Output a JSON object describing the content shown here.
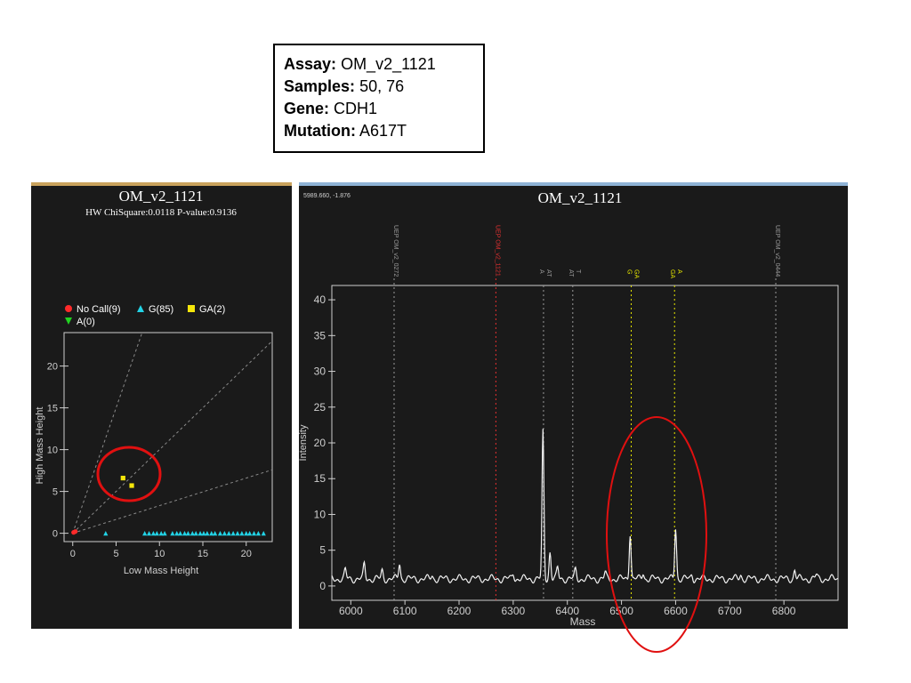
{
  "info": {
    "assay_label": "Assay:",
    "assay_value": "OM_v2_1121",
    "samples_label": "Samples:",
    "samples_value": "50, 76",
    "gene_label": "Gene:",
    "gene_value": "CDH1",
    "mutation_label": "Mutation:",
    "mutation_value": "A617T"
  },
  "colors": {
    "panel_bg": "#1a1a1a",
    "axis": "#cfcfcf",
    "no_call": "#ff2a2a",
    "g": "#22d3e6",
    "ga": "#f5e60a",
    "a": "#21d321",
    "trace": "#f2f2f2",
    "annotation": "#e01010",
    "uep_red": "#e03030"
  },
  "chart_data": [
    {
      "type": "scatter",
      "title": "OM_v2_1121",
      "subtitle": "HW ChiSquare:0.0118   P-value:0.9136",
      "xlabel": "Low Mass Height",
      "ylabel": "High Mass Height",
      "xlim": [
        -1,
        23
      ],
      "ylim": [
        -1,
        24
      ],
      "xticks": [
        0,
        5,
        10,
        15,
        20
      ],
      "yticks": [
        0,
        5,
        10,
        15,
        20
      ],
      "legend_position": "top",
      "guide_slopes": [
        3.0,
        1.0,
        0.33
      ],
      "series": [
        {
          "name": "No Call(9)",
          "marker": "circle",
          "color": "#ff2a2a",
          "points": [
            [
              0.1,
              0.1
            ],
            [
              0.3,
              0.2
            ]
          ]
        },
        {
          "name": "G(85)",
          "marker": "triangle",
          "color": "#22d3e6",
          "points": [
            [
              3.8,
              0
            ],
            [
              8.3,
              0
            ],
            [
              8.8,
              0
            ],
            [
              9.3,
              0
            ],
            [
              9.7,
              0
            ],
            [
              10.2,
              0
            ],
            [
              10.6,
              0
            ],
            [
              11.5,
              0
            ],
            [
              12.0,
              0
            ],
            [
              12.4,
              0
            ],
            [
              12.9,
              0
            ],
            [
              13.3,
              0
            ],
            [
              13.8,
              0
            ],
            [
              14.2,
              0
            ],
            [
              14.7,
              0
            ],
            [
              15.1,
              0
            ],
            [
              15.5,
              0
            ],
            [
              16.0,
              0
            ],
            [
              16.4,
              0
            ],
            [
              17.0,
              0
            ],
            [
              17.5,
              0
            ],
            [
              18.0,
              0
            ],
            [
              18.5,
              0
            ],
            [
              19.0,
              0
            ],
            [
              19.5,
              0
            ],
            [
              20.0,
              0
            ],
            [
              20.4,
              0
            ],
            [
              20.9,
              0
            ],
            [
              21.4,
              0
            ],
            [
              22.0,
              0
            ]
          ]
        },
        {
          "name": "GA(2)",
          "marker": "square",
          "color": "#f5e60a",
          "points": [
            [
              5.8,
              6.6
            ],
            [
              6.8,
              5.7
            ]
          ]
        },
        {
          "name": "A(0)",
          "marker": "triangle-down",
          "color": "#21d321",
          "points": []
        }
      ]
    },
    {
      "type": "line",
      "title": "OM_v2_1121",
      "readout": "5989.660, -1.876",
      "xlabel": "Mass",
      "ylabel": "Intensity",
      "xlim": [
        5965,
        6900
      ],
      "ylim": [
        -2,
        42
      ],
      "xticks": [
        6000,
        6100,
        6200,
        6300,
        6400,
        6500,
        6600,
        6700,
        6800
      ],
      "yticks": [
        0,
        5,
        10,
        15,
        20,
        25,
        30,
        35,
        40
      ],
      "baseline": 1.0,
      "peaks": [
        {
          "x": 5990,
          "h": 1.2
        },
        {
          "x": 6025,
          "h": 2.0
        },
        {
          "x": 6058,
          "h": 1.1
        },
        {
          "x": 6090,
          "h": 2.2
        },
        {
          "x": 6150,
          "h": 0.5
        },
        {
          "x": 6300,
          "h": 0.8
        },
        {
          "x": 6355,
          "h": 20.5
        },
        {
          "x": 6368,
          "h": 3.8
        },
        {
          "x": 6382,
          "h": 1.5
        },
        {
          "x": 6415,
          "h": 1.2
        },
        {
          "x": 6470,
          "h": 0.8
        },
        {
          "x": 6516,
          "h": 6.5
        },
        {
          "x": 6540,
          "h": 0.9
        },
        {
          "x": 6600,
          "h": 7.2
        },
        {
          "x": 6630,
          "h": 0.6
        },
        {
          "x": 6720,
          "h": 0.6
        },
        {
          "x": 6820,
          "h": 1.3
        },
        {
          "x": 6860,
          "h": 0.5
        }
      ],
      "markers": [
        {
          "x": 6080,
          "label": "UEP OM_v2_0272",
          "color": "#9a9a9a",
          "row": "top"
        },
        {
          "x": 6268,
          "label": "UEP OM_v2_1121",
          "color": "#e03030",
          "row": "top"
        },
        {
          "x": 6356,
          "label": "A\nAT",
          "color": "#9a9a9a",
          "row": "low"
        },
        {
          "x": 6410,
          "label": "AT\nT",
          "color": "#9a9a9a",
          "row": "low"
        },
        {
          "x": 6518,
          "label": "G\nGA",
          "color": "#e6e600",
          "row": "low"
        },
        {
          "x": 6598,
          "label": "GA\nA",
          "color": "#e6e600",
          "row": "low"
        },
        {
          "x": 6785,
          "label": "UEP OM_v2_0444",
          "color": "#9a9a9a",
          "row": "top"
        }
      ]
    }
  ]
}
